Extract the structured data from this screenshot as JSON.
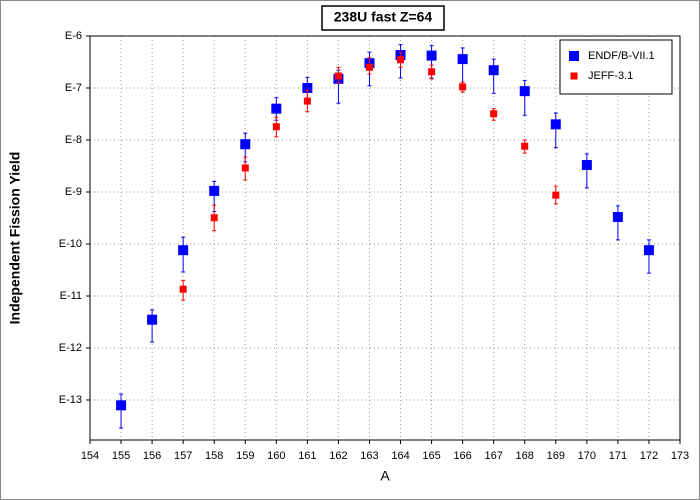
{
  "chart_data": {
    "type": "scatter",
    "title": "238U fast Z=64",
    "xlabel": "A",
    "ylabel": "Independent Fission Yield",
    "log_y": true,
    "grid": true,
    "legend": "upper right",
    "xlim": [
      154,
      173
    ],
    "xticks": [
      154,
      155,
      156,
      157,
      158,
      159,
      160,
      161,
      162,
      163,
      164,
      165,
      166,
      167,
      168,
      169,
      170,
      171,
      172,
      173
    ],
    "ylim": [
      1.7e-14,
      1e-06
    ],
    "yticks": [
      {
        "value": 1e-13,
        "label": "E-13"
      },
      {
        "value": 1e-12,
        "label": "E-12"
      },
      {
        "value": 1e-11,
        "label": "E-11"
      },
      {
        "value": 1e-10,
        "label": "E-10"
      },
      {
        "value": 1e-09,
        "label": "E-9"
      },
      {
        "value": 1e-08,
        "label": "E-8"
      },
      {
        "value": 1e-07,
        "label": "E-7"
      },
      {
        "value": 1e-06,
        "label": "E-6"
      }
    ],
    "series": [
      {
        "name": "ENDF/B-VII.1",
        "color": "#0000ff",
        "x": [
          155,
          156,
          157,
          158,
          159,
          160,
          161,
          162,
          163,
          164,
          165,
          166,
          167,
          168,
          169,
          170,
          171,
          172
        ],
        "values": [
          7.9e-14,
          3.5e-12,
          7.6e-11,
          1.05e-09,
          8.3e-09,
          4e-08,
          1e-07,
          1.5e-07,
          3e-07,
          4.3e-07,
          4.2e-07,
          3.6e-07,
          2.2e-07,
          8.7e-08,
          2e-08,
          3.3e-09,
          3.3e-10,
          7.6e-11
        ],
        "err_low": [
          2.9e-14,
          1.3e-12,
          2.9e-11,
          4.2e-10,
          3.8e-09,
          2.4e-08,
          5.4e-08,
          5.1e-08,
          1.1e-07,
          1.55e-07,
          1.55e-07,
          1.15e-07,
          7.9e-08,
          3e-08,
          7.1e-09,
          1.2e-09,
          1.2e-10,
          2.75e-11
        ],
        "err_high": [
          1.3e-13,
          5.4e-12,
          1.35e-10,
          1.6e-09,
          1.35e-08,
          6.5e-08,
          1.6e-07,
          2.2e-07,
          4.9e-07,
          6.8e-07,
          6.5e-07,
          5.9e-07,
          3.6e-07,
          1.4e-07,
          3.3e-08,
          5.4e-09,
          5.4e-10,
          1.2e-10
        ]
      },
      {
        "name": "JEFF-3.1",
        "color": "#ff0000",
        "x": [
          157,
          158,
          159,
          160,
          161,
          162,
          163,
          164,
          165,
          166,
          167,
          168,
          169
        ],
        "values": [
          1.35e-11,
          3.2e-10,
          2.9e-09,
          1.8e-08,
          5.6e-08,
          1.7e-07,
          2.5e-07,
          3.5e-07,
          2.05e-07,
          1.05e-07,
          3.2e-08,
          7.6e-09,
          8.7e-10
        ],
        "err_low": [
          8.3e-12,
          1.8e-10,
          1.7e-09,
          1.15e-08,
          3.5e-08,
          1.25e-07,
          1.85e-07,
          2.5e-07,
          1.5e-07,
          8.3e-08,
          2.4e-08,
          5.6e-09,
          5.9e-10
        ],
        "err_high": [
          2e-11,
          5.6e-10,
          4.7e-09,
          2.75e-08,
          9.1e-08,
          2.5e-07,
          3.8e-07,
          4.9e-07,
          2.75e-07,
          1.3e-07,
          4e-08,
          1e-08,
          1.3e-09
        ]
      }
    ]
  }
}
